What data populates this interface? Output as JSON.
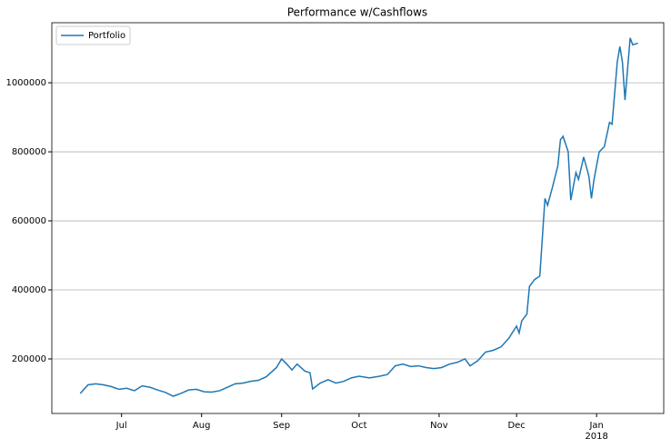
{
  "chart_data": {
    "type": "line",
    "title": "Performance w/Cashflows",
    "x": [
      "2017-06-15",
      "2017-06-18",
      "2017-06-21",
      "2017-06-24",
      "2017-06-27",
      "2017-06-30",
      "2017-07-03",
      "2017-07-06",
      "2017-07-09",
      "2017-07-12",
      "2017-07-15",
      "2017-07-18",
      "2017-07-21",
      "2017-07-24",
      "2017-07-27",
      "2017-07-30",
      "2017-08-02",
      "2017-08-05",
      "2017-08-08",
      "2017-08-11",
      "2017-08-14",
      "2017-08-17",
      "2017-08-20",
      "2017-08-23",
      "2017-08-26",
      "2017-08-30",
      "2017-09-01",
      "2017-09-03",
      "2017-09-05",
      "2017-09-07",
      "2017-09-10",
      "2017-09-12",
      "2017-09-13",
      "2017-09-16",
      "2017-09-19",
      "2017-09-22",
      "2017-09-25",
      "2017-09-28",
      "2017-10-01",
      "2017-10-05",
      "2017-10-09",
      "2017-10-12",
      "2017-10-15",
      "2017-10-18",
      "2017-10-21",
      "2017-10-24",
      "2017-10-27",
      "2017-10-30",
      "2017-11-02",
      "2017-11-05",
      "2017-11-08",
      "2017-11-11",
      "2017-11-13",
      "2017-11-16",
      "2017-11-19",
      "2017-11-22",
      "2017-11-25",
      "2017-11-28",
      "2017-12-01",
      "2017-12-02",
      "2017-12-03",
      "2017-12-05",
      "2017-12-06",
      "2017-12-08",
      "2017-12-10",
      "2017-12-12",
      "2017-12-13",
      "2017-12-15",
      "2017-12-17",
      "2017-12-18",
      "2017-12-19",
      "2017-12-21",
      "2017-12-22",
      "2017-12-24",
      "2017-12-25",
      "2017-12-27",
      "2017-12-29",
      "2017-12-30",
      "2017-12-31",
      "2018-01-02",
      "2018-01-04",
      "2018-01-06",
      "2018-01-07",
      "2018-01-09",
      "2018-01-10",
      "2018-01-11",
      "2018-01-12",
      "2018-01-14",
      "2018-01-15",
      "2018-01-17"
    ],
    "series": [
      {
        "name": "Portfolio",
        "color": "#1f77b4",
        "values": [
          100000,
          125000,
          128000,
          125000,
          120000,
          112000,
          115000,
          108000,
          122000,
          118000,
          110000,
          103000,
          92000,
          100000,
          110000,
          112000,
          105000,
          104000,
          108000,
          118000,
          128000,
          130000,
          135000,
          138000,
          148000,
          175000,
          200000,
          185000,
          168000,
          185000,
          165000,
          160000,
          113000,
          130000,
          140000,
          130000,
          135000,
          145000,
          150000,
          145000,
          150000,
          155000,
          180000,
          185000,
          178000,
          180000,
          175000,
          172000,
          175000,
          185000,
          190000,
          200000,
          180000,
          195000,
          220000,
          225000,
          235000,
          260000,
          295000,
          275000,
          310000,
          330000,
          410000,
          430000,
          440000,
          665000,
          645000,
          700000,
          760000,
          835000,
          845000,
          800000,
          660000,
          740000,
          720000,
          785000,
          730000,
          665000,
          720000,
          800000,
          815000,
          885000,
          880000,
          1060000,
          1105000,
          1060000,
          950000,
          1130000,
          1110000,
          1115000
        ]
      }
    ],
    "xlim": [
      "2017-06-04",
      "2018-01-27"
    ],
    "xticks": [
      {
        "value": "2017-07-01",
        "label": "Jul"
      },
      {
        "value": "2017-08-01",
        "label": "Aug"
      },
      {
        "value": "2017-09-01",
        "label": "Sep"
      },
      {
        "value": "2017-10-01",
        "label": "Oct"
      },
      {
        "value": "2017-11-01",
        "label": "Nov"
      },
      {
        "value": "2017-12-01",
        "label": "Dec"
      },
      {
        "value": "2018-01-01",
        "label": "Jan\n2018"
      }
    ],
    "ylim": [
      42000,
      1174000
    ],
    "yticks": [
      200000,
      400000,
      600000,
      800000,
      1000000
    ],
    "grid": true,
    "legend": "upper left"
  }
}
